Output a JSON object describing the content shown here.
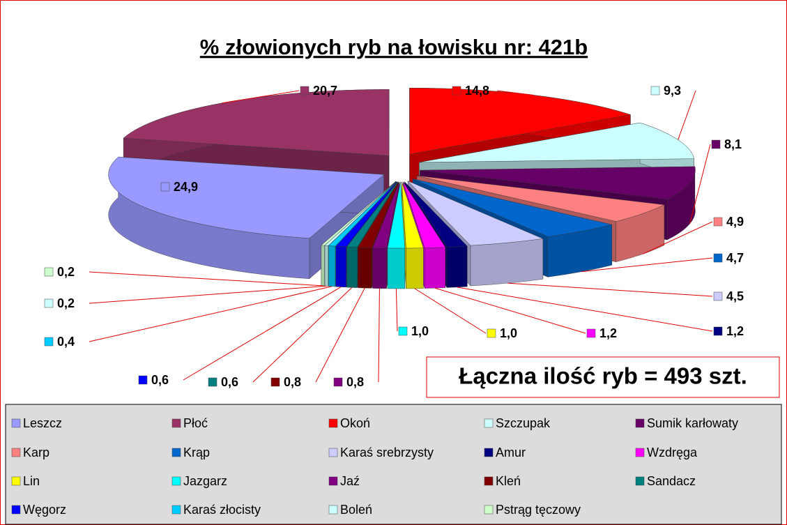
{
  "chart_data": {
    "type": "pie",
    "title": "% złowionych ryb na łowisku nr: 421b",
    "annotation": "Łączna ilość ryb = 493 szt.",
    "categories": [
      "Leszcz",
      "Płoć",
      "Okoń",
      "Szczupak",
      "Sumik karłowaty",
      "Karp",
      "Krąp",
      "Karaś srebrzysty",
      "Amur",
      "Wzdręga",
      "Lin",
      "Jazgarz",
      "Jaź",
      "Kleń",
      "Sandacz",
      "Węgorz",
      "Karaś złocisty",
      "Boleń",
      "Pstrąg tęczowy"
    ],
    "values": [
      24.9,
      20.7,
      14.8,
      9.3,
      8.1,
      4.9,
      4.7,
      4.5,
      1.2,
      1.2,
      1.0,
      1.0,
      0.8,
      0.8,
      0.6,
      0.6,
      0.4,
      0.2,
      0.2
    ],
    "value_labels": [
      "24,9",
      "20,7",
      "14,8",
      "9,3",
      "8,1",
      "4,9",
      "4,7",
      "4,5",
      "1,2",
      "1,2",
      "1,0",
      "1,0",
      "0,8",
      "0,8",
      "0,6",
      "0,6",
      "0,4",
      "0,2",
      "0,2"
    ],
    "colors": [
      "#9999ff",
      "#993366",
      "#ff0000",
      "#ccffff",
      "#660066",
      "#ff8080",
      "#0066cc",
      "#ccccff",
      "#000080",
      "#ff00ff",
      "#ffff00",
      "#00ffff",
      "#800080",
      "#800000",
      "#008080",
      "#0000ff",
      "#00ccff",
      "#ccffff",
      "#ccffcc"
    ],
    "legend": "bottom"
  }
}
